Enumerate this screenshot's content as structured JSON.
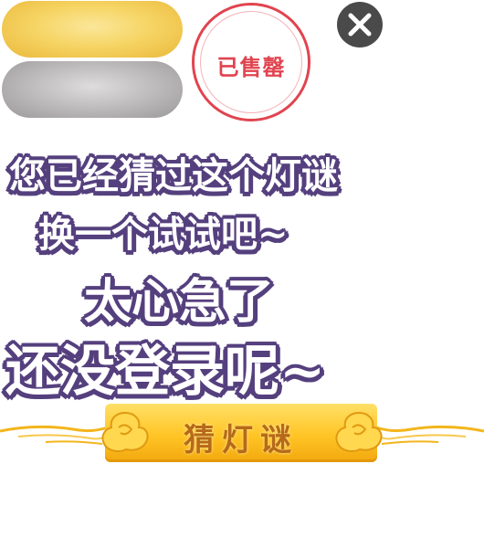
{
  "sold_badge": {
    "label": "已售罄"
  },
  "close_icon": "close-icon",
  "message": {
    "line1": "您已经猜过这个灯谜",
    "line2": "换一个试试吧~",
    "line3": "太心急了",
    "line4": "还没登录呢~"
  },
  "guess_button": {
    "label": "猜灯谜"
  },
  "colors": {
    "outline": "#55407e",
    "stamp_red": "#e1444f",
    "button_gold": "#ffc425",
    "button_text": "#b66a19",
    "close_bg": "#4a4a4a"
  }
}
